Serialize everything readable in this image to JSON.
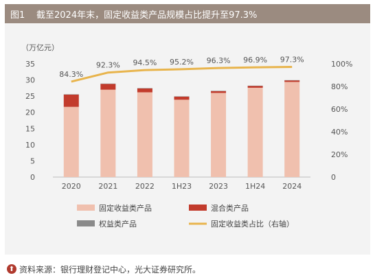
{
  "figure": {
    "number": "图1",
    "title": "截至2024年末，固定收益类产品规模占比提升至97.3%",
    "source": "资料来源：银行理财登记中心，光大证券研究所。",
    "source_icon": "up-arrow-icon"
  },
  "chart_data": {
    "type": "bar",
    "stacked": true,
    "categories": [
      "2020",
      "2021",
      "2022",
      "1H23",
      "2023",
      "1H24",
      "2024"
    ],
    "y_unit_label": "（万亿元）",
    "ylim": [
      0,
      35
    ],
    "y_ticks": [
      "0",
      "5",
      "10",
      "15",
      "20",
      "25",
      "30",
      "35"
    ],
    "y2lim": [
      0,
      1
    ],
    "y2_ticks": [
      "0",
      "20%",
      "40%",
      "60%",
      "80%",
      "100%"
    ],
    "series": [
      {
        "name": "固定收益类产品",
        "axis": "left",
        "color": "#f0c0ae",
        "values": [
          21.7,
          27.0,
          26.2,
          23.9,
          26.0,
          27.6,
          29.4
        ]
      },
      {
        "name": "混合类产品",
        "axis": "left",
        "color": "#c23b2c",
        "values": [
          3.8,
          1.8,
          1.2,
          1.0,
          0.6,
          0.6,
          0.5
        ]
      },
      {
        "name": "权益类产品",
        "axis": "left",
        "color": "#8a8a8a",
        "values": [
          0.1,
          0.1,
          0.1,
          0.05,
          0.05,
          0.05,
          0.05
        ]
      },
      {
        "name": "固定收益类占比（右轴）",
        "axis": "right",
        "type": "line",
        "color": "#e8b44c",
        "values": [
          0.843,
          0.923,
          0.945,
          0.952,
          0.963,
          0.969,
          0.973
        ]
      }
    ],
    "line_labels": [
      "84.3%",
      "92.3%",
      "94.5%",
      "95.2%",
      "96.3%",
      "96.9%",
      "97.3%"
    ],
    "legend_position": "bottom",
    "grid": false
  }
}
